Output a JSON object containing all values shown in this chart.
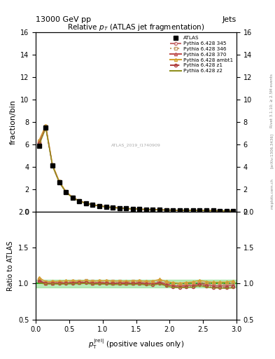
{
  "title": "Relative $p_T$ (ATLAS jet fragmentation)",
  "header_left": "13000 GeV pp",
  "header_right": "Jets",
  "ylabel_main": "fraction/bin",
  "ylabel_ratio": "Ratio to ATLAS",
  "watermark": "ATLAS_2019_I1740909",
  "rivet_label": "Rivet 3.1.10; ≥ 2.5M events",
  "arxiv_label": "[arXiv:1306.3436]",
  "mcplots_label": "mcplots.cern.ch",
  "ylim_main": [
    0,
    16
  ],
  "ylim_ratio": [
    0.5,
    2.0
  ],
  "xlim": [
    0,
    3
  ],
  "x_data": [
    0.05,
    0.15,
    0.25,
    0.35,
    0.45,
    0.55,
    0.65,
    0.75,
    0.85,
    0.95,
    1.05,
    1.15,
    1.25,
    1.35,
    1.45,
    1.55,
    1.65,
    1.75,
    1.85,
    1.95,
    2.05,
    2.15,
    2.25,
    2.35,
    2.45,
    2.55,
    2.65,
    2.75,
    2.85,
    2.95
  ],
  "atlas_y": [
    5.9,
    7.5,
    4.1,
    2.65,
    1.75,
    1.25,
    0.95,
    0.75,
    0.62,
    0.52,
    0.44,
    0.38,
    0.33,
    0.29,
    0.26,
    0.23,
    0.21,
    0.19,
    0.17,
    0.16,
    0.15,
    0.14,
    0.13,
    0.12,
    0.11,
    0.105,
    0.1,
    0.095,
    0.09,
    0.085
  ],
  "atlas_err": [
    0.15,
    0.2,
    0.1,
    0.07,
    0.05,
    0.04,
    0.03,
    0.025,
    0.02,
    0.018,
    0.015,
    0.013,
    0.012,
    0.011,
    0.01,
    0.009,
    0.008,
    0.007,
    0.007,
    0.006,
    0.006,
    0.005,
    0.005,
    0.005,
    0.004,
    0.004,
    0.004,
    0.004,
    0.003,
    0.003
  ],
  "p345_y": [
    6.2,
    7.6,
    4.15,
    2.7,
    1.78,
    1.28,
    0.97,
    0.77,
    0.63,
    0.53,
    0.45,
    0.385,
    0.335,
    0.295,
    0.265,
    0.235,
    0.212,
    0.192,
    0.175,
    0.16,
    0.148,
    0.137,
    0.128,
    0.119,
    0.112,
    0.105,
    0.099,
    0.094,
    0.089,
    0.085
  ],
  "p346_y": [
    6.3,
    7.65,
    4.2,
    2.72,
    1.8,
    1.29,
    0.98,
    0.78,
    0.64,
    0.54,
    0.455,
    0.392,
    0.34,
    0.298,
    0.268,
    0.237,
    0.215,
    0.195,
    0.178,
    0.163,
    0.15,
    0.139,
    0.13,
    0.121,
    0.113,
    0.106,
    0.1,
    0.095,
    0.09,
    0.086
  ],
  "p370_y": [
    6.15,
    7.55,
    4.12,
    2.68,
    1.77,
    1.27,
    0.965,
    0.765,
    0.625,
    0.525,
    0.445,
    0.382,
    0.332,
    0.292,
    0.262,
    0.232,
    0.21,
    0.19,
    0.173,
    0.158,
    0.146,
    0.135,
    0.126,
    0.117,
    0.11,
    0.103,
    0.097,
    0.092,
    0.087,
    0.083
  ],
  "pambt1_y": [
    6.4,
    7.7,
    4.22,
    2.74,
    1.82,
    1.3,
    0.985,
    0.782,
    0.642,
    0.541,
    0.458,
    0.394,
    0.342,
    0.3,
    0.27,
    0.239,
    0.217,
    0.197,
    0.18,
    0.165,
    0.152,
    0.141,
    0.132,
    0.123,
    0.115,
    0.108,
    0.102,
    0.097,
    0.092,
    0.088
  ],
  "pz1_y": [
    6.1,
    7.5,
    4.1,
    2.65,
    1.76,
    1.26,
    0.96,
    0.762,
    0.622,
    0.522,
    0.442,
    0.38,
    0.33,
    0.29,
    0.26,
    0.23,
    0.208,
    0.188,
    0.171,
    0.156,
    0.144,
    0.133,
    0.124,
    0.115,
    0.108,
    0.101,
    0.095,
    0.09,
    0.085,
    0.081
  ],
  "pz2_y": [
    5.95,
    7.45,
    4.08,
    2.63,
    1.74,
    1.245,
    0.948,
    0.752,
    0.615,
    0.516,
    0.437,
    0.375,
    0.326,
    0.287,
    0.257,
    0.228,
    0.206,
    0.186,
    0.169,
    0.155,
    0.142,
    0.132,
    0.123,
    0.114,
    0.107,
    0.1,
    0.094,
    0.089,
    0.084,
    0.08
  ],
  "color_345": "#c87070",
  "color_346": "#c8a070",
  "color_370": "#c05050",
  "color_ambt1": "#d4a030",
  "color_z1": "#b04040",
  "color_z2": "#909020",
  "color_green_line": "#00aa00",
  "color_green_band": "#88dd88",
  "atlas_band_half": 0.05
}
